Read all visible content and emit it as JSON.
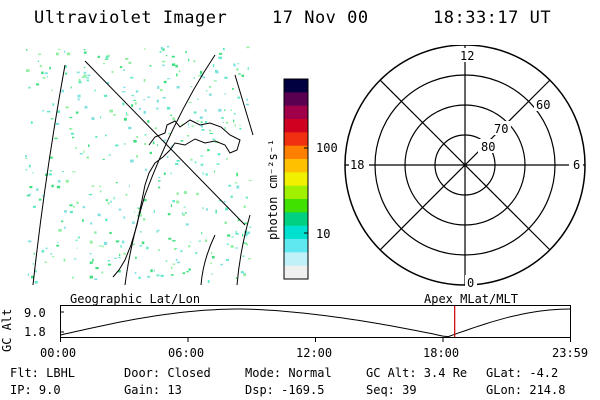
{
  "header": {
    "title": "Ultraviolet Imager",
    "date": "17 Nov 00",
    "time": "18:33:17 UT"
  },
  "colorbar": {
    "unit_label": "photon cm⁻²s⁻¹",
    "ticks": [
      "100",
      "10"
    ],
    "scale": "log",
    "colors": [
      "#000040",
      "#5a0050",
      "#a0004a",
      "#d00020",
      "#f03010",
      "#ff8000",
      "#ffc000",
      "#f0f000",
      "#a0f000",
      "#40e000",
      "#00d080",
      "#00e0d0",
      "#60e8f0",
      "#c0f0f8",
      "#f0f0f0"
    ]
  },
  "polar": {
    "labels": {
      "top": "12",
      "bottom": "0",
      "left": "18",
      "right": "6"
    },
    "lat_labels": [
      "80",
      "70",
      "60"
    ]
  },
  "altitude_plot": {
    "left_label": "Geographic Lat/Lon",
    "right_label": "Apex MLat/MLT",
    "ylabel": "GC Alt",
    "yticks": [
      "9.0",
      "1.8"
    ],
    "xticks": [
      "00:00",
      "06:00",
      "12:00",
      "18:00",
      "23:59"
    ],
    "current_time_hours": 18.55,
    "marker_color": "#cc0000"
  },
  "info": {
    "flt": "Flt: LBHL",
    "door": "Door: Closed",
    "mode": "Mode: Normal",
    "gcalt": "GC Alt: 3.4 Re",
    "glat": "GLat:  -4.2",
    "ip": "IP:  9.0",
    "gain": "Gain: 13",
    "dsp": "Dsp: -169.5",
    "seq": "Seq: 39",
    "glon": "GLon: 214.8"
  }
}
